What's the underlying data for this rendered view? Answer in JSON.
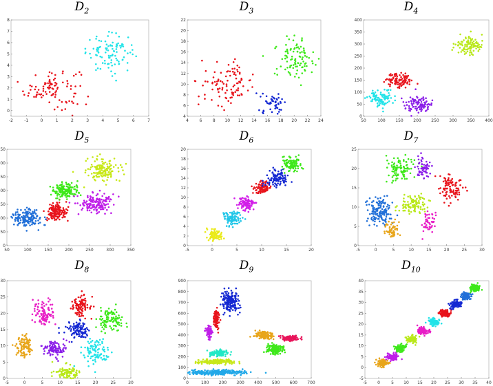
{
  "figure_title": "",
  "chart_data": [
    {
      "name": "D2",
      "title": "D",
      "title_sub": "2",
      "type": "scatter",
      "xlim": [
        -2,
        7
      ],
      "ylim": [
        -0.5,
        8
      ],
      "xticks": [
        "-2",
        "-1",
        "0",
        "1",
        "2",
        "3",
        "4",
        "5",
        "6",
        "7"
      ],
      "yticks": [
        "0",
        "1",
        "2",
        "3",
        "4",
        "5",
        "6",
        "7",
        "8"
      ],
      "clusters": [
        {
          "color": "#e8141c",
          "cx": 0.7,
          "cy": 2.0,
          "sx": 0.9,
          "sy": 0.9,
          "n": 100
        },
        {
          "color": "#22e3e8",
          "cx": 4.5,
          "cy": 5.1,
          "sx": 0.8,
          "sy": 0.8,
          "n": 100
        }
      ]
    },
    {
      "name": "D3",
      "title": "D",
      "title_sub": "3",
      "type": "scatter",
      "xlim": [
        4,
        24
      ],
      "ylim": [
        4,
        22
      ],
      "xticks": [
        "4",
        "6",
        "8",
        "10",
        "12",
        "14",
        "16",
        "18",
        "20",
        "22",
        "24"
      ],
      "yticks": [
        "4",
        "6",
        "8",
        "10",
        "12",
        "14",
        "16",
        "18",
        "20",
        "22"
      ],
      "clusters": [
        {
          "color": "#e8141c",
          "cx": 10,
          "cy": 10,
          "sx": 2.0,
          "sy": 2.0,
          "n": 100
        },
        {
          "color": "#1428d2",
          "cx": 17,
          "cy": 6.5,
          "sx": 1.0,
          "sy": 1.0,
          "n": 50
        },
        {
          "color": "#3ee81a",
          "cx": 20,
          "cy": 15,
          "sx": 1.5,
          "sy": 2.0,
          "n": 100
        }
      ]
    },
    {
      "name": "D4",
      "title": "D",
      "title_sub": "4",
      "type": "scatter",
      "xlim": [
        50,
        400
      ],
      "ylim": [
        0,
        400
      ],
      "xticks": [
        "50",
        "100",
        "150",
        "200",
        "250",
        "300",
        "350",
        "400"
      ],
      "yticks": [
        "0",
        "50",
        "100",
        "150",
        "200",
        "250",
        "300",
        "350",
        "400"
      ],
      "clusters": [
        {
          "color": "#22e3e8",
          "cx": 100,
          "cy": 75,
          "sx": 17,
          "sy": 17,
          "n": 100
        },
        {
          "color": "#e8141c",
          "cx": 150,
          "cy": 150,
          "sx": 20,
          "sy": 15,
          "n": 100
        },
        {
          "color": "#8a1ee8",
          "cx": 205,
          "cy": 50,
          "sx": 18,
          "sy": 18,
          "n": 100
        },
        {
          "color": "#b9e81a",
          "cx": 345,
          "cy": 295,
          "sx": 20,
          "sy": 18,
          "n": 100
        }
      ]
    },
    {
      "name": "D5",
      "title": "D",
      "title_sub": "5",
      "type": "scatter",
      "xlim": [
        50,
        350
      ],
      "ylim": [
        0,
        350
      ],
      "xticks": [
        "50",
        "100",
        "150",
        "200",
        "250",
        "300",
        "350"
      ],
      "yticks": [
        "0",
        "50",
        "100",
        "150",
        "200",
        "250",
        "300",
        "350"
      ],
      "clusters": [
        {
          "color": "#2270d8",
          "cx": 100,
          "cy": 100,
          "sx": 18,
          "sy": 18,
          "n": 150
        },
        {
          "color": "#e8141c",
          "cx": 170,
          "cy": 125,
          "sx": 13,
          "sy": 16,
          "n": 150
        },
        {
          "color": "#3ee81a",
          "cx": 190,
          "cy": 200,
          "sx": 15,
          "sy": 15,
          "n": 150
        },
        {
          "color": "#bf1ee8",
          "cx": 265,
          "cy": 155,
          "sx": 22,
          "sy": 17,
          "n": 150
        },
        {
          "color": "#c8e81a",
          "cx": 280,
          "cy": 275,
          "sx": 22,
          "sy": 20,
          "n": 150
        }
      ]
    },
    {
      "name": "D6",
      "title": "D",
      "title_sub": "6",
      "type": "scatter",
      "xlim": [
        -5,
        20
      ],
      "ylim": [
        0,
        20
      ],
      "xticks": [
        "-5",
        "0",
        "5",
        "10",
        "15",
        "20"
      ],
      "yticks": [
        "0",
        "2",
        "4",
        "6",
        "8",
        "10",
        "12",
        "14",
        "16",
        "18",
        "20"
      ],
      "clusters": [
        {
          "color": "#eaea1a",
          "cx": 0.5,
          "cy": 2.2,
          "sx": 0.7,
          "sy": 0.6,
          "n": 100
        },
        {
          "color": "#22c6e8",
          "cx": 4,
          "cy": 5.8,
          "sx": 0.8,
          "sy": 0.7,
          "n": 100
        },
        {
          "color": "#d21ee8",
          "cx": 7,
          "cy": 8.8,
          "sx": 0.8,
          "sy": 0.7,
          "n": 100
        },
        {
          "color": "#e8141c",
          "cx": 10,
          "cy": 12,
          "sx": 0.9,
          "sy": 0.6,
          "n": 100
        },
        {
          "color": "#1428d2",
          "cx": 13,
          "cy": 14,
          "sx": 1.0,
          "sy": 0.9,
          "n": 100
        },
        {
          "color": "#3ee81a",
          "cx": 16,
          "cy": 17,
          "sx": 1.0,
          "sy": 0.8,
          "n": 100
        }
      ]
    },
    {
      "name": "D7",
      "title": "D",
      "title_sub": "7",
      "type": "scatter",
      "xlim": [
        -5,
        30
      ],
      "ylim": [
        0,
        25
      ],
      "xticks": [
        "-5",
        "0",
        "5",
        "10",
        "15",
        "20",
        "25",
        "30"
      ],
      "yticks": [
        "0",
        "5",
        "10",
        "15",
        "20",
        "25"
      ],
      "clusters": [
        {
          "color": "#2270d8",
          "cx": 1,
          "cy": 9,
          "sx": 1.6,
          "sy": 2.0,
          "n": 150
        },
        {
          "color": "#e8a51a",
          "cx": 4.5,
          "cy": 4,
          "sx": 1.0,
          "sy": 1.2,
          "n": 60
        },
        {
          "color": "#3ee81a",
          "cx": 7,
          "cy": 20,
          "sx": 2.0,
          "sy": 1.6,
          "n": 100
        },
        {
          "color": "#b9e81a",
          "cx": 10.5,
          "cy": 10.5,
          "sx": 2.0,
          "sy": 1.2,
          "n": 100
        },
        {
          "color": "#8a1ee8",
          "cx": 13.5,
          "cy": 20,
          "sx": 1.0,
          "sy": 1.6,
          "n": 60
        },
        {
          "color": "#e81ec6",
          "cx": 15,
          "cy": 6,
          "sx": 1.0,
          "sy": 1.2,
          "n": 50
        },
        {
          "color": "#e8141c",
          "cx": 21,
          "cy": 15,
          "sx": 1.8,
          "sy": 1.6,
          "n": 100
        }
      ]
    },
    {
      "name": "D8",
      "title": "D",
      "title_sub": "8",
      "type": "scatter",
      "xlim": [
        -5,
        30
      ],
      "ylim": [
        0,
        30
      ],
      "xticks": [
        "-5",
        "0",
        "5",
        "10",
        "15",
        "20",
        "25",
        "30"
      ],
      "yticks": [
        "0",
        "5",
        "10",
        "15",
        "20",
        "25",
        "30"
      ],
      "clusters": [
        {
          "color": "#e8a51a",
          "cx": 0,
          "cy": 10,
          "sx": 1.2,
          "sy": 2.0,
          "n": 100
        },
        {
          "color": "#e81ec6",
          "cx": 5.5,
          "cy": 20,
          "sx": 1.6,
          "sy": 1.8,
          "n": 100
        },
        {
          "color": "#8a1ee8",
          "cx": 8.5,
          "cy": 9,
          "sx": 1.6,
          "sy": 1.2,
          "n": 100
        },
        {
          "color": "#b9e81a",
          "cx": 12,
          "cy": 2,
          "sx": 1.6,
          "sy": 1.0,
          "n": 100
        },
        {
          "color": "#1428d2",
          "cx": 15,
          "cy": 15,
          "sx": 1.8,
          "sy": 1.5,
          "n": 100
        },
        {
          "color": "#e8141c",
          "cx": 16,
          "cy": 22,
          "sx": 1.2,
          "sy": 1.6,
          "n": 100
        },
        {
          "color": "#22e3e8",
          "cx": 20,
          "cy": 8,
          "sx": 2.0,
          "sy": 2.0,
          "n": 100
        },
        {
          "color": "#3ee81a",
          "cx": 24,
          "cy": 18,
          "sx": 1.8,
          "sy": 2.0,
          "n": 100
        }
      ]
    },
    {
      "name": "D9",
      "title": "D",
      "title_sub": "9",
      "type": "scatter",
      "xlim": [
        0,
        700
      ],
      "ylim": [
        0,
        900
      ],
      "xticks": [
        "0",
        "100",
        "200",
        "300",
        "400",
        "500",
        "600",
        "700"
      ],
      "yticks": [
        "0",
        "100",
        "200",
        "300",
        "400",
        "500",
        "600",
        "700",
        "800",
        "900"
      ],
      "clusters": [
        {
          "color": "#22a8e8",
          "cx": 170,
          "cy": 55,
          "sx": 90,
          "sy": 12,
          "n": 260
        },
        {
          "color": "#c8e81a",
          "cx": 160,
          "cy": 155,
          "sx": 50,
          "sy": 10,
          "n": 200
        },
        {
          "color": "#22e8c6",
          "cx": 175,
          "cy": 230,
          "sx": 25,
          "sy": 15,
          "n": 120
        },
        {
          "color": "#bf1ee8",
          "cx": 125,
          "cy": 430,
          "sx": 8,
          "sy": 30,
          "n": 70
        },
        {
          "color": "#e8141c",
          "cx": 165,
          "cy": 550,
          "sx": 8,
          "sy": 45,
          "n": 90
        },
        {
          "color": "#1428d2",
          "cx": 240,
          "cy": 710,
          "sx": 22,
          "sy": 40,
          "n": 180
        },
        {
          "color": "#e8a51a",
          "cx": 435,
          "cy": 400,
          "sx": 25,
          "sy": 17,
          "n": 140
        },
        {
          "color": "#3ee81a",
          "cx": 495,
          "cy": 270,
          "sx": 22,
          "sy": 22,
          "n": 150
        },
        {
          "color": "#e8145a",
          "cx": 580,
          "cy": 370,
          "sx": 25,
          "sy": 10,
          "n": 120
        }
      ]
    },
    {
      "name": "D10",
      "title": "D",
      "title_sub": "10",
      "type": "scatter",
      "xlim": [
        -5,
        40
      ],
      "ylim": [
        -5,
        40
      ],
      "xticks": [
        "-5",
        "0",
        "5",
        "10",
        "15",
        "20",
        "25",
        "30",
        "35",
        "40"
      ],
      "yticks": [
        "-5",
        "0",
        "5",
        "10",
        "15",
        "20",
        "25",
        "30",
        "35",
        "40"
      ],
      "clusters": [
        {
          "color": "#e8a51a",
          "cx": 1.5,
          "cy": 2,
          "sx": 1.0,
          "sy": 0.8,
          "n": 100
        },
        {
          "color": "#bf1ee8",
          "cx": 5,
          "cy": 5,
          "sx": 1.0,
          "sy": 0.8,
          "n": 100
        },
        {
          "color": "#3ee81a",
          "cx": 8,
          "cy": 9,
          "sx": 1.0,
          "sy": 0.8,
          "n": 100
        },
        {
          "color": "#b9e81a",
          "cx": 12,
          "cy": 13,
          "sx": 1.0,
          "sy": 0.8,
          "n": 100
        },
        {
          "color": "#e81ec6",
          "cx": 16,
          "cy": 17,
          "sx": 1.0,
          "sy": 0.8,
          "n": 100
        },
        {
          "color": "#22e3e8",
          "cx": 20,
          "cy": 21,
          "sx": 1.0,
          "sy": 0.8,
          "n": 100
        },
        {
          "color": "#e8141c",
          "cx": 24,
          "cy": 25,
          "sx": 1.0,
          "sy": 0.8,
          "n": 100
        },
        {
          "color": "#1428d2",
          "cx": 28,
          "cy": 29,
          "sx": 1.0,
          "sy": 0.8,
          "n": 100
        },
        {
          "color": "#2270d8",
          "cx": 31.5,
          "cy": 33,
          "sx": 1.0,
          "sy": 0.8,
          "n": 100
        },
        {
          "color": "#3ee81a",
          "cx": 35,
          "cy": 36.5,
          "sx": 1.0,
          "sy": 0.8,
          "n": 100
        }
      ]
    }
  ]
}
